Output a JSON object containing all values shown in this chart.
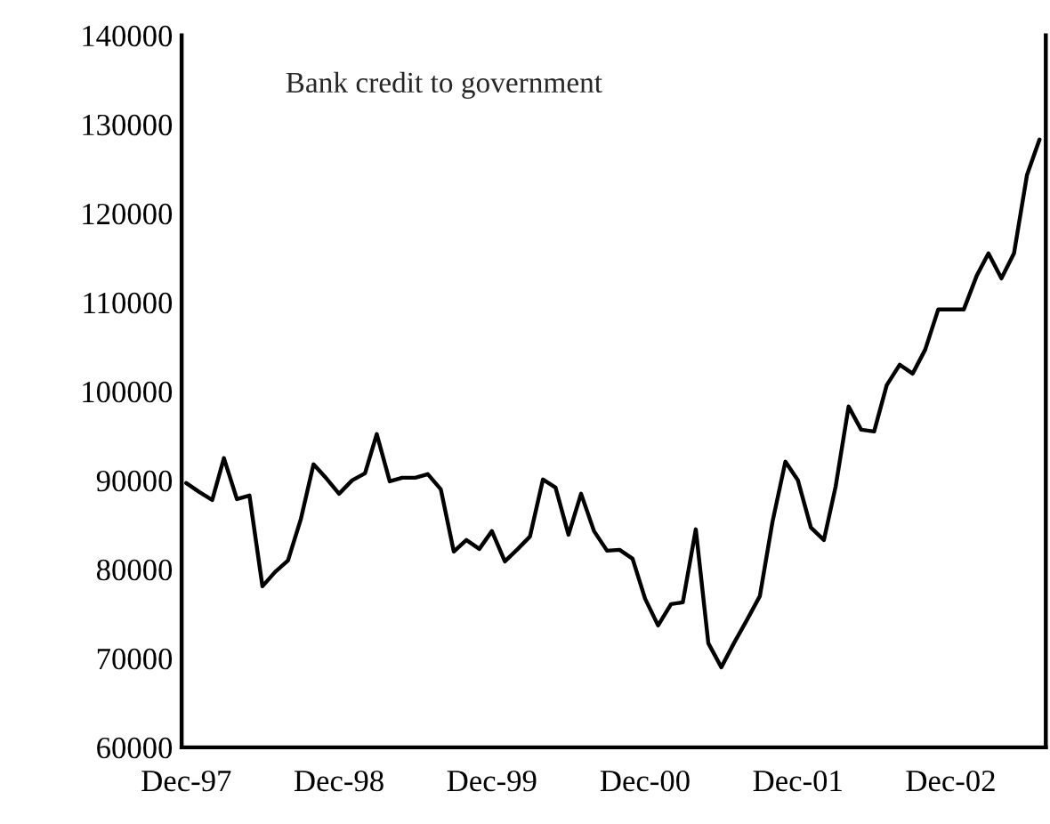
{
  "chart_data": {
    "type": "line",
    "annotations": [
      "Bank credit to government"
    ],
    "x": [
      "1997-12",
      "1998-01",
      "1998-02",
      "1998-03",
      "1998-04",
      "1998-05",
      "1998-06",
      "1998-07",
      "1998-08",
      "1998-09",
      "1998-10",
      "1998-11",
      "1998-12",
      "1999-01",
      "1999-02",
      "1999-03",
      "1999-04",
      "1999-05",
      "1999-06",
      "1999-07",
      "1999-08",
      "1999-09",
      "1999-10",
      "1999-11",
      "1999-12",
      "2000-01",
      "2000-02",
      "2000-03",
      "2000-04",
      "2000-05",
      "2000-06",
      "2000-07",
      "2000-08",
      "2000-09",
      "2000-10",
      "2000-11",
      "2000-12",
      "2001-01",
      "2001-02",
      "2001-03",
      "2001-04",
      "2001-05",
      "2001-06",
      "2001-07",
      "2001-08",
      "2001-09",
      "2001-10",
      "2001-11",
      "2001-12",
      "2002-01",
      "2002-02",
      "2002-03",
      "2002-04",
      "2002-05",
      "2002-06",
      "2002-07",
      "2002-08",
      "2002-09",
      "2002-10",
      "2002-11",
      "2002-12",
      "2003-01",
      "2003-02",
      "2003-03",
      "2003-04",
      "2003-05",
      "2003-06",
      "2003-07"
    ],
    "series": [
      {
        "color": "#000000",
        "values": [
          89700,
          88700,
          87800,
          92500,
          87900,
          88300,
          78100,
          79700,
          81000,
          85700,
          91800,
          90200,
          88500,
          90000,
          90800,
          95200,
          89900,
          90300,
          90300,
          90700,
          89000,
          82000,
          83300,
          82300,
          84300,
          80900,
          82300,
          83700,
          90100,
          89200,
          83900,
          88500,
          84300,
          82100,
          82200,
          81200,
          76700,
          73700,
          76100,
          76300,
          84500,
          71700,
          69000,
          71700,
          74300,
          77000,
          85300,
          92100,
          90000,
          84700,
          83300,
          89300,
          98300,
          95700,
          95500,
          100700,
          103000,
          102000,
          104700,
          109200,
          109200,
          109200,
          113000,
          115500,
          112700,
          115500,
          124300,
          128300
        ]
      }
    ],
    "xlim": [
      "1997-11-20",
      "2003-07-16"
    ],
    "xticks": [
      {
        "value": "1997-12",
        "label": "Dec-97"
      },
      {
        "value": "1998-12",
        "label": "Dec-98"
      },
      {
        "value": "1999-12",
        "label": "Dec-99"
      },
      {
        "value": "2000-12",
        "label": "Dec-00"
      },
      {
        "value": "2001-12",
        "label": "Dec-01"
      },
      {
        "value": "2002-12",
        "label": "Dec-02"
      }
    ],
    "ylim": [
      60000,
      140000
    ],
    "yticks": [
      60000,
      70000,
      80000,
      90000,
      100000,
      110000,
      120000,
      130000,
      140000
    ],
    "grid": false,
    "marker": "none",
    "line_style": "solid"
  }
}
